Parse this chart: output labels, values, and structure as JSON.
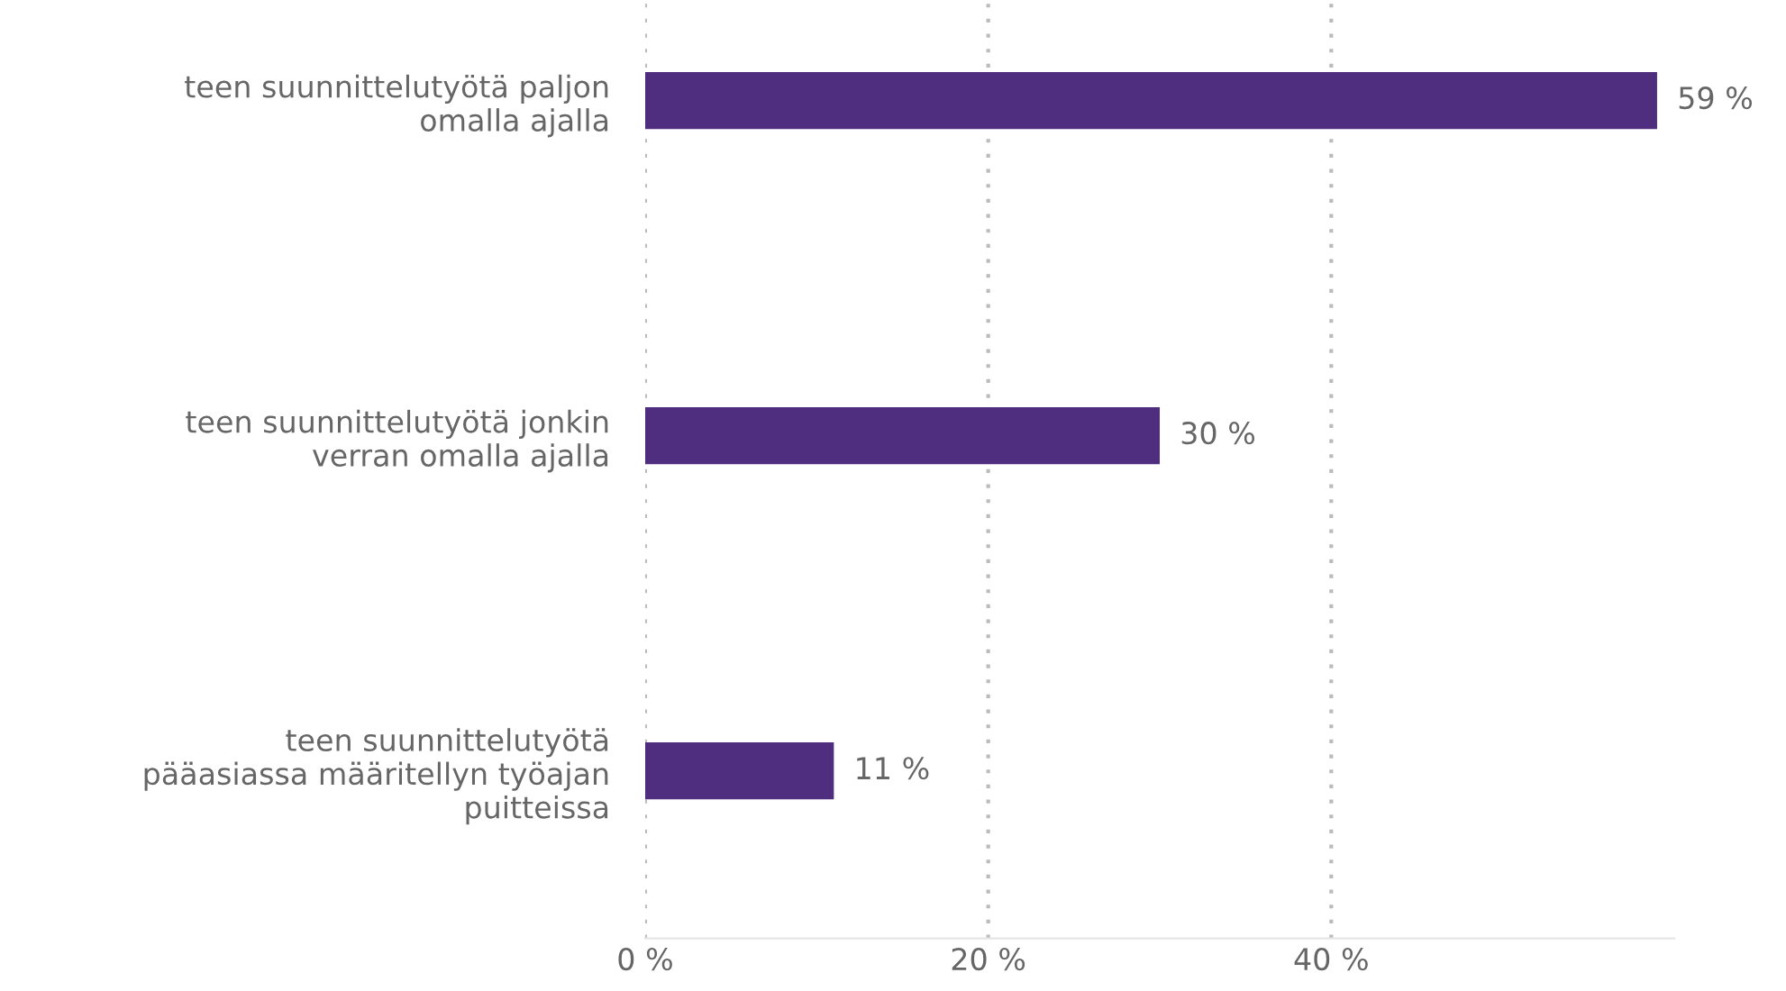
{
  "chart_data": {
    "type": "bar",
    "orientation": "horizontal",
    "categories": [
      "teen suunnittelutyötä paljon\nomalla ajalla",
      "teen suunnittelutyötä jonkin\nverran omalla ajalla",
      "teen suunnittelutyötä\npääasiassa määritellyn työajan\npuitteissa"
    ],
    "values": [
      59,
      30,
      11
    ],
    "value_labels": [
      "59 %",
      "30 %",
      "11 %"
    ],
    "color": "#4f2d7f",
    "xlim": [
      0,
      60
    ],
    "xticks": [
      {
        "value": 0,
        "label": "0 %"
      },
      {
        "value": 20,
        "label": "20 %"
      },
      {
        "value": 40,
        "label": "40 %"
      }
    ],
    "grid": "x"
  }
}
